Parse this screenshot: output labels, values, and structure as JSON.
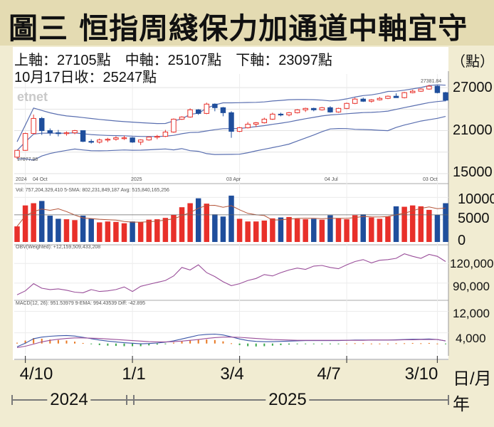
{
  "title": "圖三  恒指周綫保力加通道中軸宜守",
  "header": {
    "line1": "上軸：27105點　中軸：25107點　下軸：23097點",
    "line2": "10月17日收：25247點",
    "unit": "（點）"
  },
  "watermark": "etnet",
  "x_axis": {
    "labels": [
      "4/10",
      "1/1",
      "3/4",
      "4/7",
      "3/10"
    ],
    "unit": "日/月",
    "years": [
      "2024",
      "2025"
    ],
    "year_unit": "年"
  },
  "colors": {
    "up": "#e8302a",
    "down": "#1f4e9c",
    "band": "#5a6fb0",
    "obv": "#9a4f9a",
    "macd_pos": "#e87722",
    "macd_neg": "#3aa84a",
    "vol_ma": "#b5553a"
  },
  "panels": {
    "price": {
      "yticks": [
        "27000",
        "21000",
        "15000"
      ],
      "inner_labels": [
        "2024",
        "04 Oct",
        "2025",
        "03 Apr",
        "04 Jul",
        "03 Oct"
      ],
      "hi_label": "27381.84",
      "lo_label": "17077.88"
    },
    "volume": {
      "legend": "Vol: 757,204,329,410  5-SMA: 802,231,849,187  Avg: 515,840,165,256",
      "yticks": [
        "10000",
        "5000",
        "0"
      ]
    },
    "obv": {
      "legend": "OBV(Weighted): +12,159,509,433,208",
      "yticks": [
        "120,000",
        "90,000"
      ]
    },
    "macd": {
      "legend": "MACD(12, 26): 951.53979  9-EMA: 994.43539  Diff: -42.895",
      "yticks": [
        "12,000",
        "4,000"
      ]
    }
  },
  "chart_data": {
    "type": "candlestick",
    "title": "圖三  恒指周綫保力加通道中軸宜守",
    "period": "weekly",
    "date_range": [
      "2024-09",
      "2025-10"
    ],
    "bollinger": {
      "upper": 27105,
      "middle": 25107,
      "lower": 23097
    },
    "close_2025_10_17": 25247,
    "ohlc": [
      [
        17300,
        18300,
        17078,
        18250
      ],
      [
        18250,
        20700,
        18200,
        20600
      ],
      [
        20600,
        23241,
        20500,
        22700
      ],
      [
        22700,
        22900,
        20400,
        21000
      ],
      [
        21000,
        21300,
        20300,
        20700
      ],
      [
        20700,
        21100,
        20200,
        20600
      ],
      [
        20600,
        20900,
        20300,
        20700
      ],
      [
        20700,
        21100,
        20500,
        21000
      ],
      [
        21000,
        21000,
        19400,
        19500
      ],
      [
        19500,
        19800,
        19200,
        19400
      ],
      [
        19400,
        19900,
        19200,
        19700
      ],
      [
        19700,
        20000,
        19400,
        19800
      ],
      [
        19800,
        20200,
        19600,
        20000
      ],
      [
        20000,
        20300,
        19700,
        20000
      ],
      [
        20000,
        20100,
        19300,
        19400
      ],
      [
        19400,
        19800,
        19000,
        19700
      ],
      [
        19700,
        20200,
        19600,
        20100
      ],
      [
        20100,
        20400,
        19800,
        20200
      ],
      [
        20200,
        21100,
        20100,
        20800
      ],
      [
        20800,
        22700,
        20700,
        22600
      ],
      [
        22600,
        23000,
        22500,
        22900
      ],
      [
        22900,
        24100,
        22800,
        23900
      ],
      [
        23900,
        24000,
        23200,
        23400
      ],
      [
        23400,
        24900,
        23300,
        24700
      ],
      [
        24700,
        24800,
        23700,
        24200
      ],
      [
        24200,
        24300,
        23000,
        23500
      ],
      [
        23500,
        23700,
        20000,
        20900
      ],
      [
        20900,
        21500,
        20800,
        21400
      ],
      [
        21400,
        22200,
        21300,
        21900
      ],
      [
        21900,
        22200,
        21500,
        22100
      ],
      [
        22100,
        22800,
        22000,
        22600
      ],
      [
        22600,
        23500,
        22500,
        23300
      ],
      [
        23300,
        23500,
        23000,
        23200
      ],
      [
        23200,
        23600,
        23000,
        23500
      ],
      [
        23500,
        24000,
        23400,
        23900
      ],
      [
        23900,
        24200,
        23600,
        24100
      ],
      [
        24100,
        24200,
        23700,
        23900
      ],
      [
        23900,
        24300,
        23800,
        24200
      ],
      [
        24200,
        24400,
        23500,
        23600
      ],
      [
        23600,
        24200,
        23500,
        24100
      ],
      [
        24100,
        24900,
        24000,
        24800
      ],
      [
        24800,
        25600,
        24700,
        25400
      ],
      [
        25400,
        25600,
        25000,
        25100
      ],
      [
        25100,
        25400,
        24900,
        25300
      ],
      [
        25300,
        25700,
        25200,
        25500
      ],
      [
        25500,
        25900,
        25400,
        25800
      ],
      [
        25800,
        26200,
        25700,
        25600
      ],
      [
        25600,
        26400,
        25500,
        26300
      ],
      [
        26300,
        26700,
        26200,
        26500
      ],
      [
        26500,
        26900,
        26400,
        26800
      ],
      [
        26800,
        27382,
        26700,
        27200
      ],
      [
        27200,
        27300,
        26200,
        26300
      ],
      [
        26300,
        26400,
        25100,
        25247
      ]
    ],
    "volume_k": [
      3500,
      8200,
      8700,
      9200,
      5900,
      5200,
      5100,
      4900,
      5900,
      5200,
      4400,
      4600,
      4500,
      4200,
      4600,
      4400,
      5000,
      5100,
      5400,
      6100,
      7800,
      8700,
      9800,
      8600,
      6200,
      5700,
      10400,
      5200,
      4600,
      4600,
      4800,
      5300,
      5500,
      5600,
      5200,
      5100,
      5200,
      5000,
      6000,
      5300,
      5100,
      6000,
      6200,
      5500,
      5200,
      5700,
      8000,
      7900,
      8200,
      8000,
      7200,
      6100,
      8700
    ],
    "obv_k": [
      72000,
      78000,
      89000,
      82000,
      80000,
      81000,
      79000,
      76000,
      75000,
      80000,
      77000,
      78000,
      80000,
      84000,
      77000,
      85000,
      88000,
      91000,
      94000,
      101000,
      114000,
      110000,
      118000,
      106000,
      100000,
      92000,
      86000,
      89000,
      94000,
      97000,
      103000,
      101000,
      106000,
      110000,
      113000,
      111000,
      116000,
      117000,
      114000,
      112000,
      118000,
      123000,
      126000,
      121000,
      125000,
      126000,
      128000,
      135000,
      131000,
      128000,
      134000,
      131000,
      123000
    ],
    "macd_line": [
      -1200,
      100,
      1800,
      2400,
      2700,
      2900,
      3000,
      2800,
      2300,
      1800,
      1300,
      900,
      600,
      300,
      100,
      -100,
      0,
      200,
      500,
      1000,
      1700,
      2400,
      3100,
      3400,
      3500,
      3200,
      2500,
      1700,
      1100,
      800,
      700,
      700,
      800,
      900,
      1000,
      1100,
      1100,
      1100,
      1100,
      1100,
      1200,
      1300,
      1300,
      1300,
      1300,
      1300,
      1400,
      1500,
      1600,
      1600,
      1700,
      1500,
      950
    ],
    "macd_signal": [
      -1500,
      -1000,
      -200,
      600,
      1200,
      1600,
      1900,
      2100,
      2100,
      2000,
      1900,
      1700,
      1500,
      1300,
      1100,
      900,
      700,
      600,
      600,
      700,
      900,
      1200,
      1500,
      1900,
      2200,
      2400,
      2400,
      2300,
      2100,
      1900,
      1700,
      1500,
      1400,
      1300,
      1200,
      1200,
      1200,
      1200,
      1200,
      1200,
      1200,
      1200,
      1200,
      1300,
      1300,
      1300,
      1300,
      1400,
      1400,
      1500,
      1500,
      1500,
      994
    ],
    "series": [
      {
        "name": "Vol",
        "unit": ""
      },
      {
        "name": "OBV(Weighted)",
        "unit": ""
      },
      {
        "name": "MACD(12, 26)",
        "unit": ""
      },
      {
        "name": "9-EMA",
        "unit": ""
      }
    ],
    "ylim_price": [
      15000,
      28500
    ],
    "ylim_volume": [
      0,
      11500
    ],
    "ylim_obv": [
      70000,
      140000
    ],
    "ylim_macd": [
      -3000,
      14000
    ],
    "grid": true,
    "legend": "top-left"
  }
}
